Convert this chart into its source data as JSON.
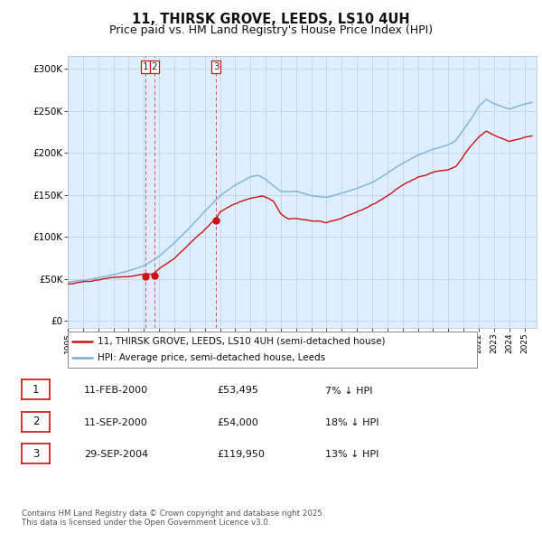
{
  "title": "11, THIRSK GROVE, LEEDS, LS10 4UH",
  "subtitle": "Price paid vs. HM Land Registry's House Price Index (HPI)",
  "title_fontsize": 10.5,
  "subtitle_fontsize": 9,
  "ylabel_ticks": [
    "£0",
    "£50K",
    "£100K",
    "£150K",
    "£200K",
    "£250K",
    "£300K"
  ],
  "ytick_vals": [
    0,
    50000,
    100000,
    150000,
    200000,
    250000,
    300000
  ],
  "ylim": [
    -8000,
    315000
  ],
  "xlim_start": 1995.0,
  "xlim_end": 2025.8,
  "hpi_color": "#7aaed6",
  "price_color": "#cc1111",
  "chart_bg": "#ddeeff",
  "legend_label_price": "11, THIRSK GROVE, LEEDS, LS10 4UH (semi-detached house)",
  "legend_label_hpi": "HPI: Average price, semi-detached house, Leeds",
  "sales": [
    {
      "year": 2000.12,
      "price": 53495,
      "label": "1"
    },
    {
      "year": 2000.7,
      "price": 54000,
      "label": "2"
    },
    {
      "year": 2004.75,
      "price": 119950,
      "label": "3"
    }
  ],
  "table_rows": [
    {
      "num": "1",
      "date": "11-FEB-2000",
      "price": "£53,495",
      "hpi": "7% ↓ HPI"
    },
    {
      "num": "2",
      "date": "11-SEP-2000",
      "price": "£54,000",
      "hpi": "18% ↓ HPI"
    },
    {
      "num": "3",
      "date": "29-SEP-2004",
      "price": "£119,950",
      "hpi": "13% ↓ HPI"
    }
  ],
  "footer": "Contains HM Land Registry data © Crown copyright and database right 2025.\nThis data is licensed under the Open Government Licence v3.0.",
  "background_color": "#ffffff",
  "grid_color": "#bbccdd"
}
